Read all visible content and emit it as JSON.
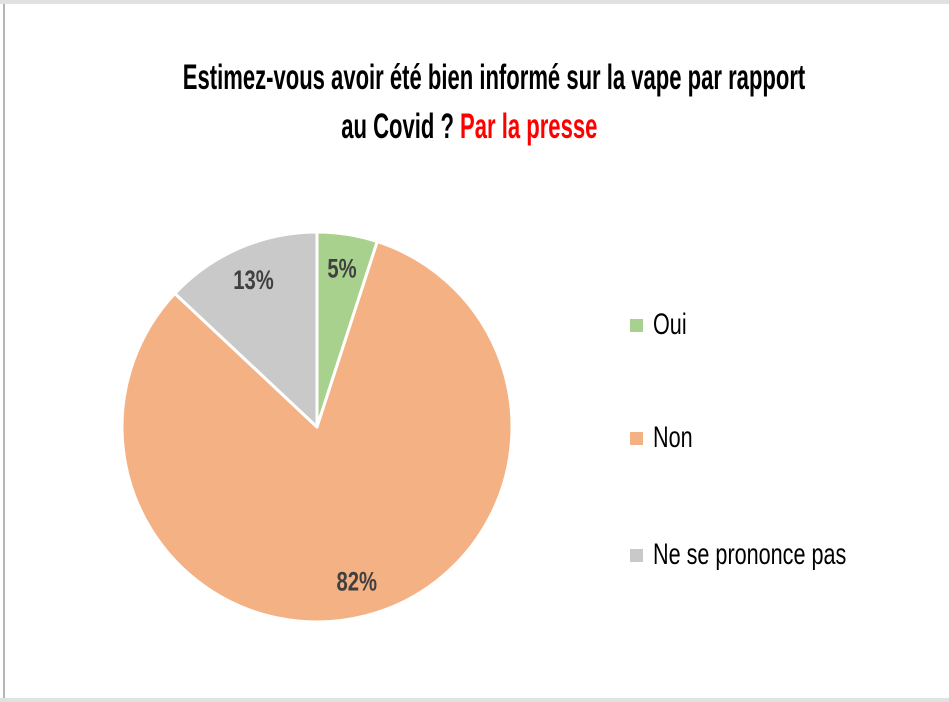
{
  "title": {
    "line1": "Estimez-vous avoir été bien informé sur la vape par rapport",
    "line2_black": "au Covid ?",
    "line2_red": "Par la presse",
    "red_color": "#ff0000"
  },
  "chart_data": {
    "type": "pie",
    "categories": [
      "Oui",
      "Non",
      "Ne se prononce pas"
    ],
    "values": [
      5,
      82,
      13
    ],
    "data_labels": [
      "5%",
      "82%",
      "13%"
    ],
    "colors": [
      "#a9d18e",
      "#f4b183",
      "#c9c9c9"
    ],
    "label_color": "#404040",
    "separator_color": "#ffffff",
    "start_angle_deg": 0,
    "direction": "clockwise",
    "legend_position": "right",
    "title": "Estimez-vous avoir été bien informé sur la vape par rapport au Covid ? Par la presse"
  },
  "legend": {
    "items": [
      {
        "label": "Oui",
        "color": "#a9d18e"
      },
      {
        "label": "Non",
        "color": "#f4b183"
      },
      {
        "label": "Ne se prononce pas",
        "color": "#c9c9c9"
      }
    ]
  }
}
